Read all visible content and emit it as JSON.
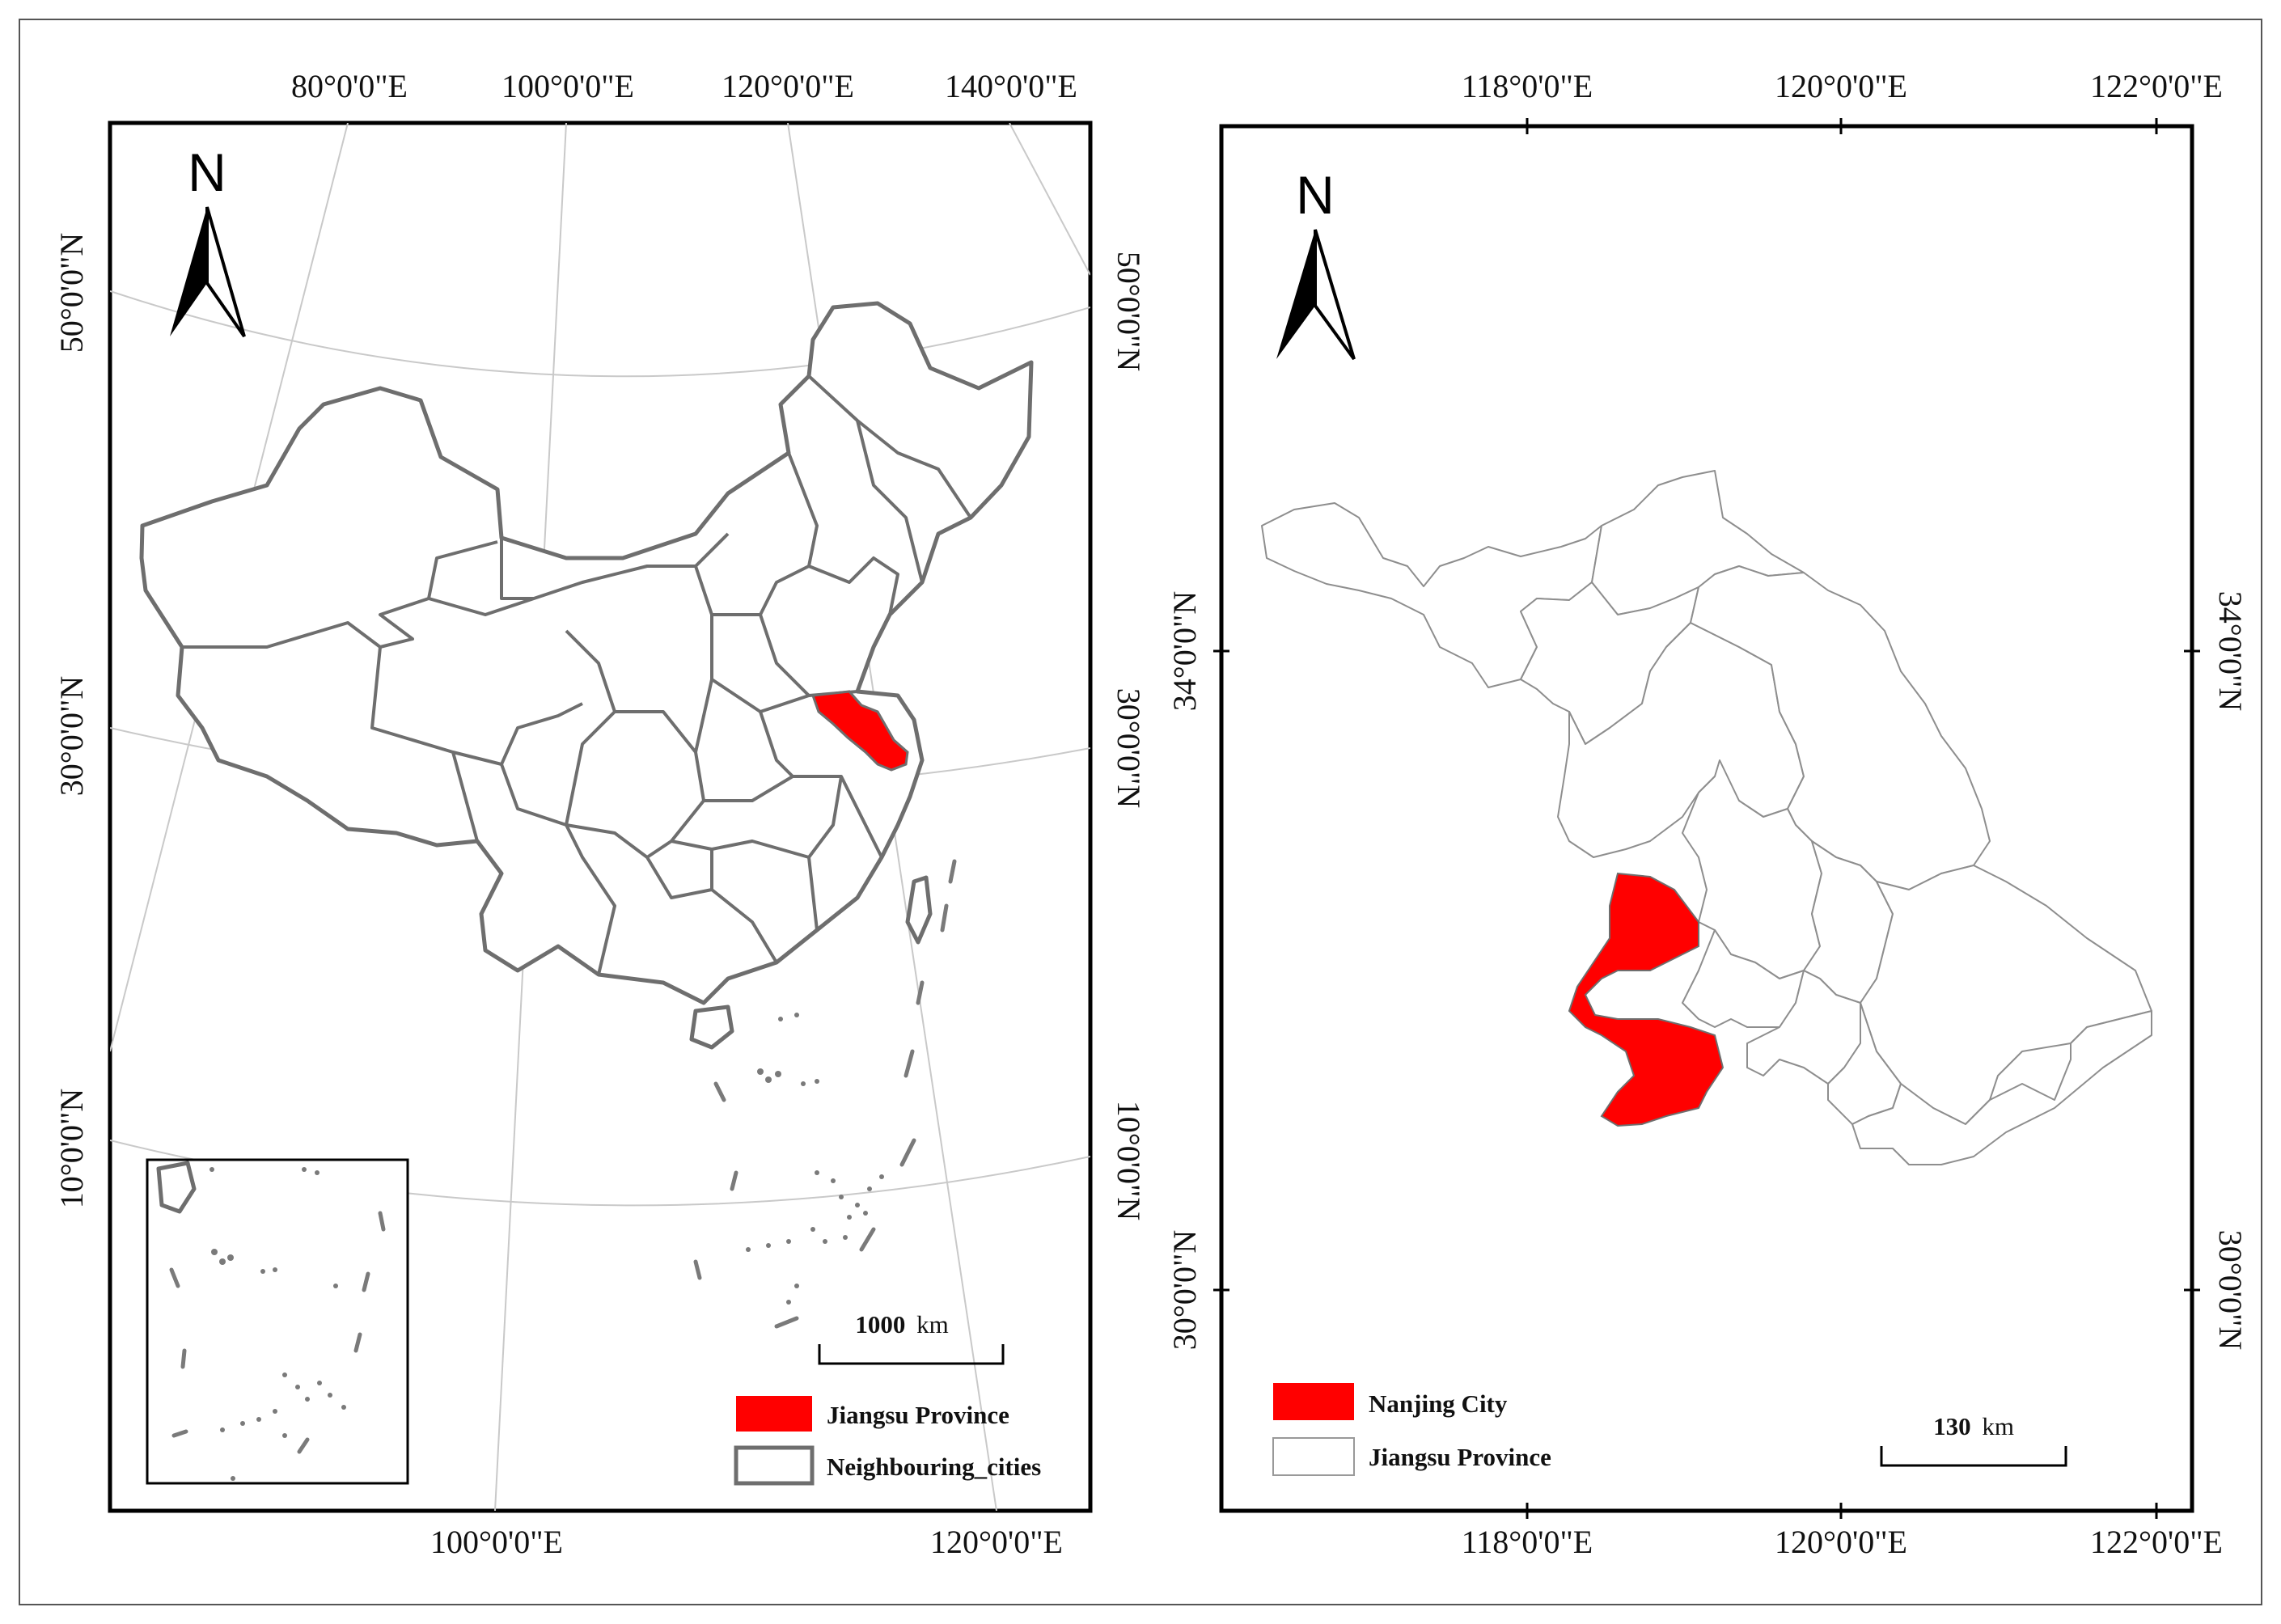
{
  "left_map": {
    "north_label": "N",
    "top_lon_labels": [
      "80°0'0\"E",
      "100°0'0\"E",
      "120°0'0\"E",
      "140°0'0\"E"
    ],
    "bottom_lon_labels": [
      "100°0'0\"E",
      "120°0'0\"E"
    ],
    "left_lat_labels": [
      "50°0'0\"N",
      "30°0'0\"N",
      "10°0'0\"N"
    ],
    "right_lat_labels": [
      "50°0'0\"N",
      "30°0'0\"N",
      "10°0'0\"N"
    ],
    "scale_value": "1000",
    "scale_unit": "km",
    "legend": [
      {
        "label": "Jiangsu Province",
        "color": "#ff0000"
      },
      {
        "label": "Neighbouring_cities",
        "color": "#ffffff"
      }
    ]
  },
  "right_map": {
    "north_label": "N",
    "top_lon_labels": [
      "118°0'0\"E",
      "120°0'0\"E",
      "122°0'0\"E"
    ],
    "bottom_lon_labels": [
      "118°0'0\"E",
      "120°0'0\"E",
      "122°0'0\"E"
    ],
    "left_lat_labels": [
      "34°0'0\"N",
      "30°0'0\"N"
    ],
    "right_lat_labels": [
      "34°0'0\"N",
      "30°0'0\"N"
    ],
    "scale_value": "130",
    "scale_unit": "km",
    "legend": [
      {
        "label": "Nanjing City",
        "color": "#ff0000"
      },
      {
        "label": "Jiangsu Province",
        "color": "#ffffff"
      }
    ]
  },
  "colors": {
    "highlight": "#ff0000",
    "boundary": "#6e6e6e",
    "graticule": "#c9c9c9"
  }
}
